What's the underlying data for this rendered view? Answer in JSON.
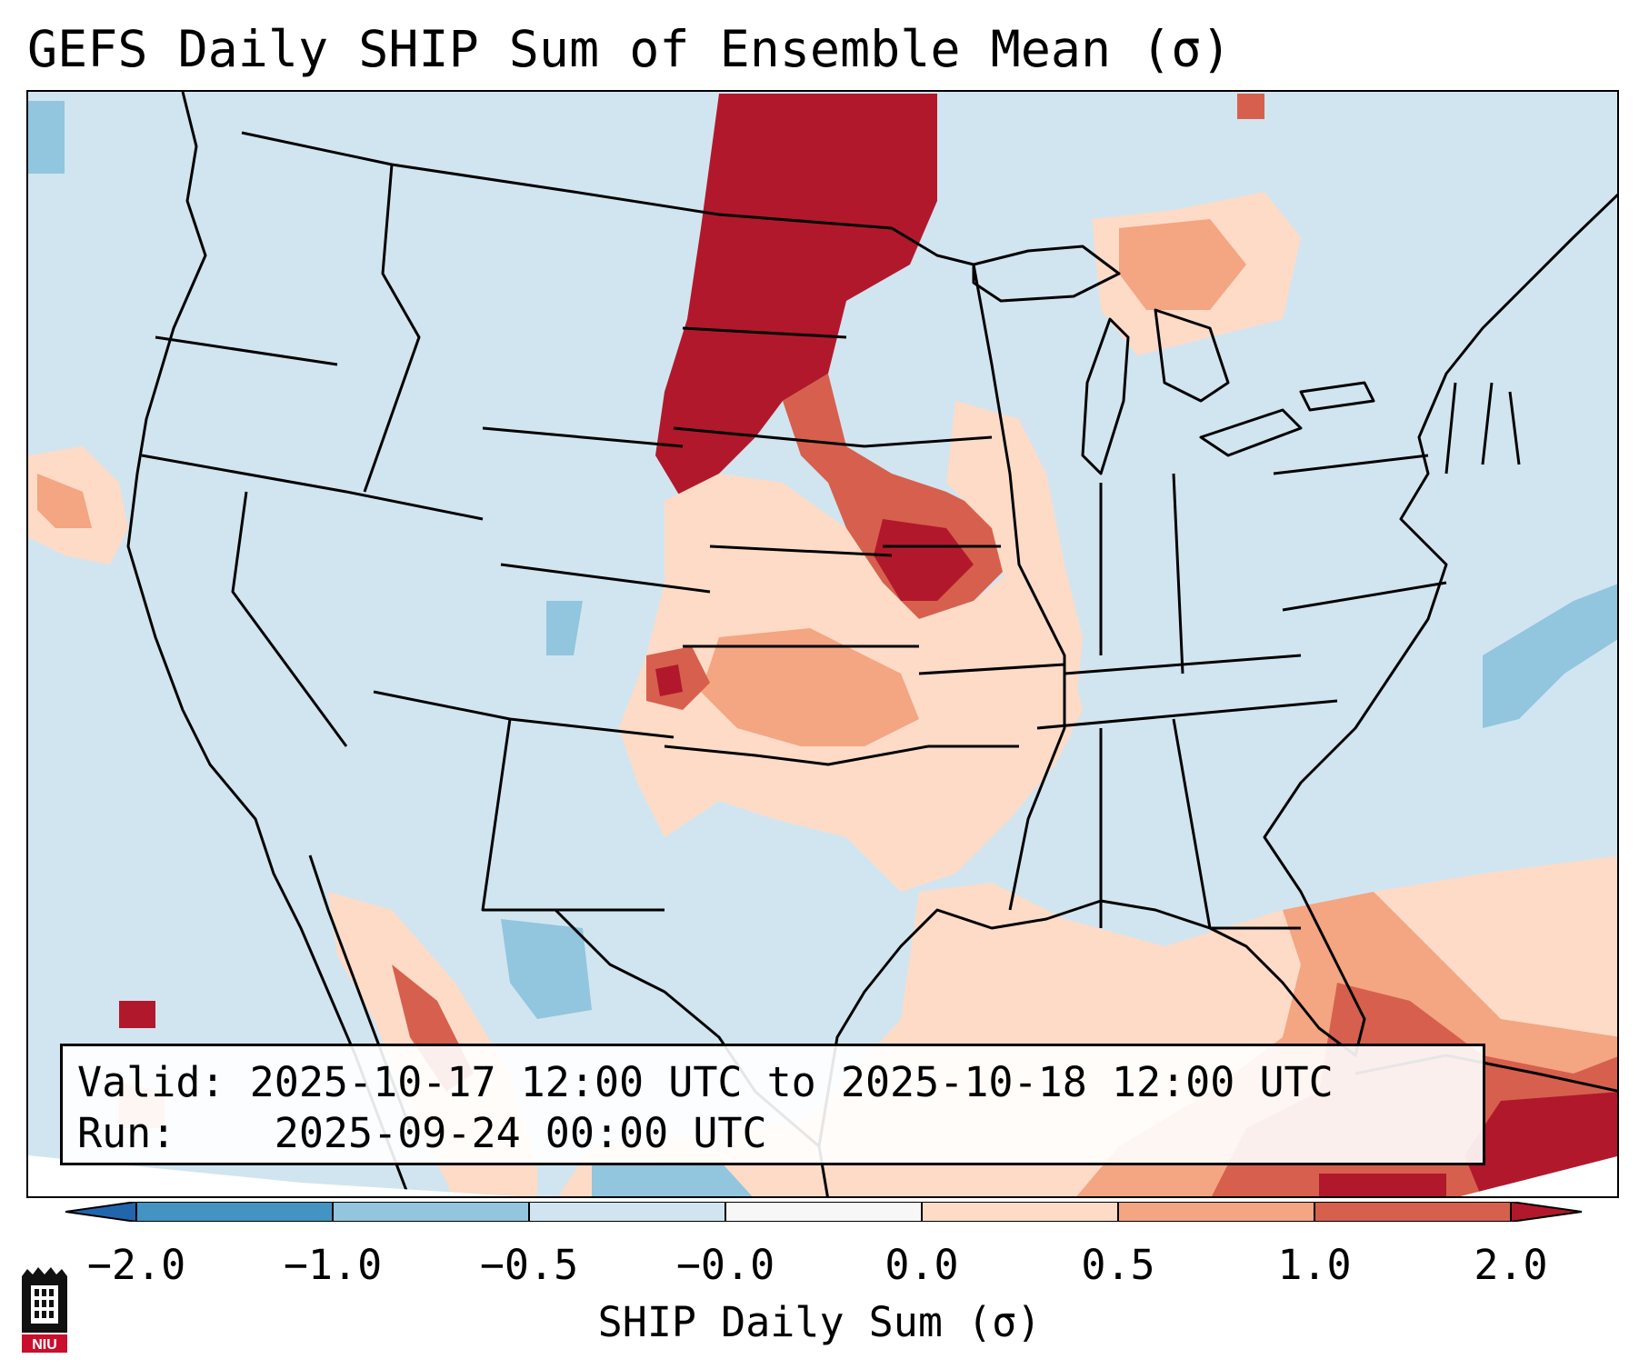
{
  "title": "GEFS Daily SHIP Sum of Ensemble Mean (σ)",
  "info": {
    "valid_label": "Valid:",
    "valid_value": "2025-10-17 12:00 UTC to 2025-10-18 12:00 UTC",
    "run_label": "Run:",
    "run_value": "2025-09-24 00:00 UTC"
  },
  "colorbar": {
    "label": "SHIP Daily Sum (σ)",
    "ticks": [
      "−2.0",
      "−1.0",
      "−0.5",
      "−0.0",
      "0.0",
      "0.5",
      "1.0",
      "2.0"
    ],
    "colors": [
      "#4393c3",
      "#92c5de",
      "#d1e5f0",
      "#f7f7f7",
      "#fddbc7",
      "#f4a582",
      "#d6604d",
      "#b2182b"
    ],
    "under_color": "#2166ac",
    "over_color": "#b2182b"
  },
  "logo": {
    "text": "NIU",
    "icon": "niu-castle-logo"
  }
}
